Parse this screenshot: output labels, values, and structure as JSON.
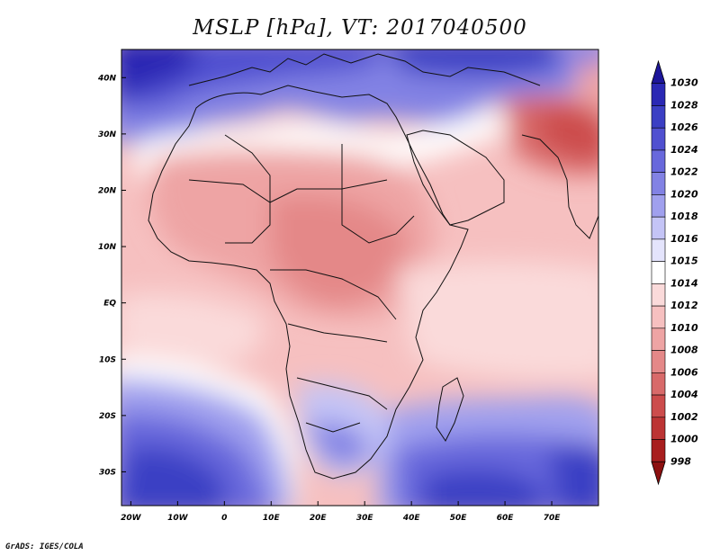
{
  "title": "MSLP [hPa], VT: 2017040500",
  "credit": "GrADS: IGES/COLA",
  "map": {
    "lon_range": [
      -22,
      80
    ],
    "lat_range": [
      -36,
      45
    ],
    "x_ticks": [
      "20W",
      "10W",
      "0",
      "10E",
      "20E",
      "30E",
      "40E",
      "50E",
      "60E",
      "70E"
    ],
    "y_ticks": [
      "40N",
      "30N",
      "20N",
      "10N",
      "EQ",
      "10S",
      "20S",
      "30S"
    ]
  },
  "colorbar": {
    "levels": [
      "1030",
      "1028",
      "1026",
      "1024",
      "1022",
      "1020",
      "1018",
      "1016",
      "1015",
      "1014",
      "1012",
      "1010",
      "1008",
      "1006",
      "1004",
      "1002",
      "1000",
      "998"
    ],
    "colors": [
      "#1d169a",
      "#2a28b4",
      "#3b3fc4",
      "#5050d0",
      "#6868dc",
      "#8282e4",
      "#a0a0ee",
      "#c4c4f6",
      "#e4e4fc",
      "#ffffff",
      "#fadada",
      "#f6c0c0",
      "#eea4a4",
      "#e48888",
      "#d86a6a",
      "#cc4c4c",
      "#bc3434",
      "#a81e1e",
      "#8c1010"
    ]
  }
}
